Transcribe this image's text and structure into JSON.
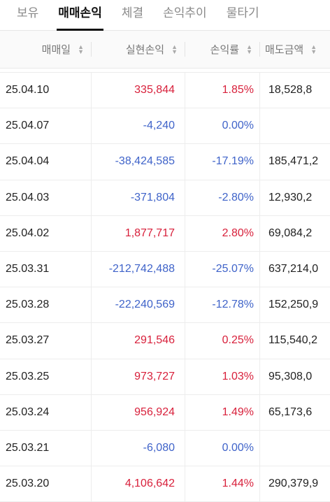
{
  "tabs": [
    {
      "label": "보유",
      "active": false
    },
    {
      "label": "매매손익",
      "active": true
    },
    {
      "label": "체결",
      "active": false
    },
    {
      "label": "손익추이",
      "active": false
    },
    {
      "label": "물타기",
      "active": false
    }
  ],
  "columns": {
    "date": "매매일",
    "profit": "실현손익",
    "rate": "손익률",
    "sell_amount": "매도금액"
  },
  "colors": {
    "positive": "#d8203b",
    "negative": "#3f63c9"
  },
  "rows": [
    {
      "date": "25.04.10",
      "profit": "335,844",
      "rate": "1.85%",
      "sell": "18,528,8",
      "sign": "pos"
    },
    {
      "date": "25.04.07",
      "profit": "-4,240",
      "rate": "0.00%",
      "sell": "",
      "sign": "neg"
    },
    {
      "date": "25.04.04",
      "profit": "-38,424,585",
      "rate": "-17.19%",
      "sell": "185,471,2",
      "sign": "neg"
    },
    {
      "date": "25.04.03",
      "profit": "-371,804",
      "rate": "-2.80%",
      "sell": "12,930,2",
      "sign": "neg"
    },
    {
      "date": "25.04.02",
      "profit": "1,877,717",
      "rate": "2.80%",
      "sell": "69,084,2",
      "sign": "pos"
    },
    {
      "date": "25.03.31",
      "profit": "-212,742,488",
      "rate": "-25.07%",
      "sell": "637,214,0",
      "sign": "neg"
    },
    {
      "date": "25.03.28",
      "profit": "-22,240,569",
      "rate": "-12.78%",
      "sell": "152,250,9",
      "sign": "neg"
    },
    {
      "date": "25.03.27",
      "profit": "291,546",
      "rate": "0.25%",
      "sell": "115,540,2",
      "sign": "pos"
    },
    {
      "date": "25.03.25",
      "profit": "973,727",
      "rate": "1.03%",
      "sell": "95,308,0",
      "sign": "pos"
    },
    {
      "date": "25.03.24",
      "profit": "956,924",
      "rate": "1.49%",
      "sell": "65,173,6",
      "sign": "pos"
    },
    {
      "date": "25.03.21",
      "profit": "-6,080",
      "rate": "0.00%",
      "sell": "",
      "sign": "neg"
    },
    {
      "date": "25.03.20",
      "profit": "4,106,642",
      "rate": "1.44%",
      "sell": "290,379,9",
      "sign": "pos"
    }
  ]
}
